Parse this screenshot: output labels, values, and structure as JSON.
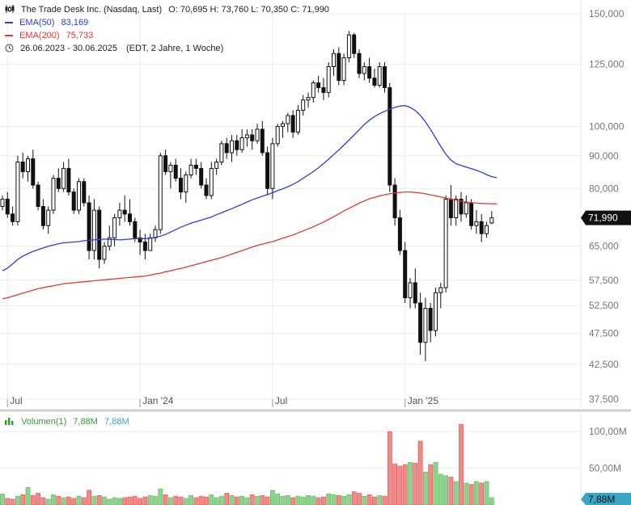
{
  "header": {
    "title": "The Trade Desk Inc. (Nasdaq, Last)",
    "ohlc": "O: 70,695  H: 73,760  L: 70,350  C: 71,990",
    "ema50_label": "EMA(50)",
    "ema50_value": "83,169",
    "ema200_label": "EMA(200)",
    "ema200_value": "75,733",
    "range": "26.06.2023 - 30.06.2025",
    "range_note": "(EDT, 2 Jahre, 1 Woche)"
  },
  "volume_header": {
    "label": "Volumen(1)",
    "value1": "7,88M",
    "value2": "7,88M"
  },
  "colors": {
    "ema50": "#2e3fd6",
    "ema200": "#e53935",
    "vol_up": "#8fd18f",
    "vol_down": "#f08a8a",
    "last_badge": "#111111",
    "vol_badge": "#3aa6c4"
  },
  "chart_data": [
    {
      "type": "candlestick",
      "scale": "log",
      "ylim": [
        37500,
        150000
      ],
      "ytick_labels": [
        "150,000",
        "125,000",
        "100,000",
        "90,000",
        "80,000",
        "71,990",
        "65,000",
        "57,500",
        "52,500",
        "47,500",
        "42,500",
        "37,500"
      ],
      "yticks": [
        150000,
        125000,
        100000,
        90000,
        80000,
        65000,
        57500,
        52500,
        47500,
        42500,
        37500
      ],
      "x_labels": [
        "Jul",
        "Jan '24",
        "Jul",
        "Jan '25"
      ],
      "x_label_index": [
        1,
        27,
        53,
        79
      ],
      "last_price": "71,990",
      "series": [
        {
          "name": "EMA(50)",
          "values": [
            59.5,
            60.1,
            61.0,
            62.0,
            62.7,
            63.3,
            63.8,
            64.2,
            64.6,
            65.0,
            65.3,
            65.6,
            65.8,
            65.9,
            66.0,
            66.1,
            66.3,
            66.4,
            66.5,
            66.6,
            66.7,
            66.6,
            66.6,
            66.5,
            66.6,
            66.7,
            66.8,
            66.8,
            66.8,
            66.9,
            67.1,
            67.4,
            67.8,
            68.4,
            69.0,
            69.6,
            70.1,
            70.6,
            71.0,
            71.4,
            71.8,
            72.2,
            72.8,
            73.3,
            73.9,
            74.4,
            75.0,
            75.6,
            76.2,
            76.8,
            77.3,
            77.8,
            78.3,
            78.8,
            79.4,
            79.9,
            80.5,
            81.2,
            82.0,
            83.0,
            84.0,
            85.0,
            86.2,
            87.5,
            88.9,
            90.4,
            91.9,
            93.5,
            95.2,
            97.0,
            98.8,
            100.7,
            102.3,
            103.6,
            104.7,
            105.6,
            106.4,
            107.1,
            107.6,
            107.8,
            107.1,
            105.9,
            104.1,
            101.7,
            98.9,
            96.0,
            93.1,
            90.5,
            88.6,
            87.5,
            86.9,
            86.4,
            85.9,
            85.4,
            84.8,
            84.1,
            83.5,
            83.17
          ]
        },
        {
          "name": "EMA(200)",
          "values": [
            53.8,
            54.0,
            54.3,
            54.6,
            54.9,
            55.2,
            55.5,
            55.8,
            56.0,
            56.2,
            56.4,
            56.6,
            56.8,
            56.9,
            57.0,
            57.1,
            57.2,
            57.3,
            57.4,
            57.5,
            57.6,
            57.7,
            57.8,
            57.9,
            58.0,
            58.1,
            58.2,
            58.3,
            58.4,
            58.6,
            58.8,
            59.0,
            59.3,
            59.5,
            59.8,
            60.0,
            60.3,
            60.6,
            60.9,
            61.2,
            61.5,
            61.8,
            62.1,
            62.4,
            62.8,
            63.2,
            63.6,
            64.0,
            64.4,
            64.8,
            65.2,
            65.5,
            65.8,
            66.1,
            66.5,
            66.9,
            67.3,
            67.7,
            68.2,
            68.7,
            69.2,
            69.7,
            70.3,
            70.9,
            71.6,
            72.3,
            73.0,
            73.8,
            74.5,
            75.2,
            75.9,
            76.5,
            77.1,
            77.5,
            77.9,
            78.2,
            78.5,
            78.7,
            78.9,
            79.0,
            79.0,
            78.9,
            78.7,
            78.5,
            78.2,
            77.9,
            77.6,
            77.3,
            77.0,
            76.7,
            76.4,
            76.2,
            76.0,
            75.9,
            75.8,
            75.78,
            75.75,
            75.733
          ]
        }
      ],
      "candles_ohlc": [
        [
          75,
          78,
          74,
          77
        ],
        [
          77,
          79,
          72,
          73
        ],
        [
          73,
          75,
          70,
          71
        ],
        [
          71,
          90,
          70,
          88
        ],
        [
          88,
          91,
          83,
          85
        ],
        [
          85,
          90,
          82,
          89
        ],
        [
          89,
          92,
          80,
          81
        ],
        [
          81,
          82,
          74,
          75
        ],
        [
          75,
          77,
          69,
          70
        ],
        [
          70,
          75,
          68,
          74
        ],
        [
          74,
          84,
          73,
          83
        ],
        [
          83,
          86,
          79,
          80
        ],
        [
          80,
          88,
          79,
          86
        ],
        [
          86,
          89,
          78,
          79
        ],
        [
          79,
          80,
          73,
          74
        ],
        [
          74,
          83,
          73,
          82
        ],
        [
          82,
          83,
          75,
          76
        ],
        [
          76,
          78,
          62,
          64
        ],
        [
          64,
          77,
          62,
          74
        ],
        [
          74,
          75,
          60,
          62
        ],
        [
          62,
          66,
          61,
          65
        ],
        [
          65,
          70,
          64,
          67
        ],
        [
          67,
          73,
          65,
          72
        ],
        [
          72,
          76,
          70,
          74
        ],
        [
          74,
          78,
          71,
          73
        ],
        [
          73,
          77,
          70,
          71
        ],
        [
          71,
          72,
          66,
          67
        ],
        [
          67,
          69,
          63,
          66
        ],
        [
          66,
          68,
          62,
          64
        ],
        [
          64,
          68,
          64,
          67
        ],
        [
          67,
          70,
          66,
          69
        ],
        [
          69,
          91,
          68,
          90
        ],
        [
          90,
          92,
          84,
          85
        ],
        [
          85,
          88,
          80,
          87
        ],
        [
          87,
          89,
          82,
          83
        ],
        [
          83,
          86,
          77,
          79
        ],
        [
          79,
          85,
          76,
          84
        ],
        [
          84,
          89,
          83,
          87
        ],
        [
          87,
          89,
          84,
          86
        ],
        [
          86,
          88,
          80,
          81
        ],
        [
          81,
          83,
          77,
          78
        ],
        [
          78,
          88,
          77,
          86
        ],
        [
          86,
          89,
          84,
          88
        ],
        [
          88,
          95,
          87,
          94
        ],
        [
          94,
          96,
          89,
          91
        ],
        [
          91,
          97,
          88,
          95
        ],
        [
          95,
          97,
          90,
          92
        ],
        [
          92,
          99,
          91,
          96
        ],
        [
          96,
          99,
          93,
          97
        ],
        [
          97,
          99,
          92,
          95
        ],
        [
          95,
          101,
          94,
          99
        ],
        [
          99,
          102,
          90,
          91
        ],
        [
          91,
          93,
          78,
          80
        ],
        [
          80,
          96,
          77,
          94
        ],
        [
          94,
          101,
          93,
          100
        ],
        [
          100,
          102,
          96,
          101
        ],
        [
          101,
          105,
          98,
          104
        ],
        [
          104,
          106,
          96,
          98
        ],
        [
          98,
          108,
          97,
          106
        ],
        [
          106,
          112,
          104,
          110
        ],
        [
          110,
          113,
          107,
          111
        ],
        [
          111,
          118,
          109,
          117
        ],
        [
          117,
          120,
          113,
          115
        ],
        [
          115,
          119,
          110,
          113
        ],
        [
          113,
          126,
          111,
          124
        ],
        [
          124,
          132,
          120,
          130
        ],
        [
          130,
          133,
          116,
          118
        ],
        [
          118,
          130,
          116,
          128
        ],
        [
          128,
          141,
          126,
          139
        ],
        [
          139,
          140,
          128,
          130
        ],
        [
          130,
          132,
          119,
          121
        ],
        [
          121,
          126,
          118,
          124
        ],
        [
          124,
          128,
          117,
          119
        ],
        [
          119,
          123,
          115,
          116
        ],
        [
          116,
          126,
          115,
          124
        ],
        [
          124,
          126,
          113,
          115
        ],
        [
          115,
          117,
          79,
          81
        ],
        [
          81,
          83,
          70,
          72
        ],
        [
          72,
          74,
          63,
          64
        ],
        [
          64,
          66,
          53,
          54
        ],
        [
          54,
          58,
          52,
          57
        ],
        [
          57,
          60,
          52,
          53
        ],
        [
          53,
          55,
          44,
          46
        ],
        [
          46,
          54,
          43,
          52
        ],
        [
          52,
          53,
          46,
          48
        ],
        [
          48,
          56,
          47,
          55
        ],
        [
          55,
          57,
          52,
          56
        ],
        [
          56,
          78,
          55,
          77
        ],
        [
          77,
          81,
          70,
          72
        ],
        [
          72,
          78,
          70,
          77
        ],
        [
          77,
          79,
          71,
          73
        ],
        [
          73,
          78,
          72,
          76
        ],
        [
          76,
          77,
          69,
          70
        ],
        [
          70,
          74,
          68,
          71
        ],
        [
          71,
          73,
          66,
          68
        ],
        [
          68,
          71,
          67,
          70
        ],
        [
          70.695,
          73.76,
          70.35,
          71.99
        ]
      ]
    },
    {
      "type": "bar",
      "title": "Volumen(1)",
      "ylim": [
        0,
        120
      ],
      "ytick_labels": [
        "100,00M",
        "50,00M"
      ],
      "yticks": [
        100,
        50
      ],
      "last_value": "7,88M",
      "values": [
        15,
        9,
        8,
        12,
        14,
        24,
        13,
        16,
        10,
        8,
        14,
        12,
        10,
        11,
        9,
        12,
        10,
        20,
        12,
        13,
        11,
        8,
        10,
        9,
        10,
        11,
        12,
        9,
        11,
        13,
        12,
        22,
        14,
        10,
        12,
        11,
        9,
        13,
        10,
        12,
        11,
        14,
        10,
        12,
        16,
        13,
        11,
        12,
        10,
        14,
        12,
        13,
        11,
        20,
        15,
        12,
        13,
        10,
        12,
        11,
        13,
        12,
        10,
        11,
        15,
        14,
        13,
        12,
        14,
        18,
        16,
        12,
        14,
        11,
        13,
        12,
        100,
        56,
        53,
        55,
        58,
        57,
        87,
        45,
        55,
        58,
        42,
        40,
        38,
        32,
        110,
        30,
        28,
        32,
        30,
        32,
        10
      ]
    }
  ]
}
